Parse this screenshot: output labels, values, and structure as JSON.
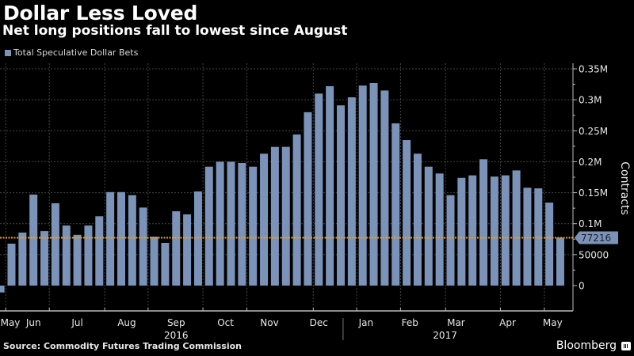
{
  "header": {
    "title": "Dollar Less Loved",
    "subtitle": "Net long positions fall to lowest since August"
  },
  "footer": {
    "source": "Source: Commodity Futures Trading Commission",
    "brand": "Bloomberg",
    "brand_icon": "bloomberg-chart-icon"
  },
  "colors": {
    "bar": "#7b93b8",
    "marker_line": "#f0a020",
    "callout_bg": "#7b93b8",
    "grid": "#444444"
  },
  "chart_data": {
    "type": "bar",
    "title": "Dollar Less Loved",
    "subtitle": "Net long positions fall to lowest since August",
    "xlabel": "",
    "ylabel": "Contracts",
    "ylim": [
      -20000,
      360000
    ],
    "grid": true,
    "legend": {
      "position": "top-left",
      "entries": [
        "Total Speculative Dollar Bets"
      ]
    },
    "yticks": [
      {
        "value": 0,
        "label": "0"
      },
      {
        "value": 50000,
        "label": "50000"
      },
      {
        "value": 100000,
        "label": "0.1M"
      },
      {
        "value": 150000,
        "label": "0.15M"
      },
      {
        "value": 200000,
        "label": "0.2M"
      },
      {
        "value": 250000,
        "label": "0.25M"
      },
      {
        "value": 300000,
        "label": "0.3M"
      },
      {
        "value": 350000,
        "label": "0.35M"
      }
    ],
    "xticks": [
      {
        "label": "May",
        "index": 0
      },
      {
        "label": "Jun",
        "index": 3
      },
      {
        "label": "Jul",
        "index": 7
      },
      {
        "label": "Aug",
        "index": 11.5
      },
      {
        "label": "Sep",
        "index": 16
      },
      {
        "label": "Oct",
        "index": 20.5
      },
      {
        "label": "Nov",
        "index": 24.5
      },
      {
        "label": "Dec",
        "index": 29
      },
      {
        "label": "Jan",
        "index": 33.3
      },
      {
        "label": "Feb",
        "index": 37.3
      },
      {
        "label": "Mar",
        "index": 41.5
      },
      {
        "label": "Apr",
        "index": 46.2
      },
      {
        "label": "May",
        "index": 50.3
      }
    ],
    "year_labels": [
      {
        "label": "2016",
        "index": 16
      },
      {
        "label": "2017",
        "index": 40.5
      }
    ],
    "year_divider_index": 31.5,
    "month_boundaries": [
      0.33,
      4.3,
      9.35,
      13.3,
      18.3,
      22.3,
      28.35,
      32.3,
      36.3,
      40.4,
      45.4,
      49.4
    ],
    "series": [
      {
        "name": "Total Speculative Dollar Bets",
        "values": [
          -11000,
          67700,
          85600,
          147000,
          88000,
          133000,
          97000,
          82000,
          97000,
          112000,
          151000,
          151000,
          146000,
          126000,
          79000,
          69000,
          120000,
          115000,
          152000,
          192000,
          200000,
          200000,
          198000,
          192000,
          213000,
          224000,
          224000,
          244000,
          280000,
          310000,
          322000,
          291000,
          304000,
          323000,
          327000,
          315000,
          262000,
          235000,
          213000,
          192000,
          181000,
          146000,
          174000,
          178000,
          204000,
          176000,
          178000,
          186000,
          158000,
          157000,
          134000,
          77216
        ]
      }
    ],
    "annotation": {
      "label": "77216",
      "value": 77216,
      "style": "dotted-horizontal-line"
    }
  }
}
